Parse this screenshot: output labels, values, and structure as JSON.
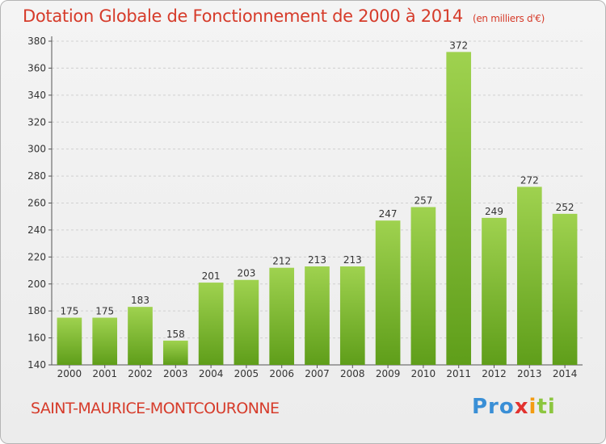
{
  "title": "Dotation Globale de Fonctionnement de 2000 à 2014",
  "unit_note": "(en milliers d'€)",
  "commune": "SAINT-MAURICE-MONTCOURONNE",
  "logo": {
    "text": "Proxiti",
    "parts": [
      "Pro",
      "x",
      "i",
      "ti"
    ]
  },
  "colors": {
    "title": "#d63b2a",
    "bar_light": "#9fd24f",
    "bar_dark": "#5f9e1a",
    "grid": "#cfcfcf"
  },
  "chart_data": {
    "type": "bar",
    "title": "Dotation Globale de Fonctionnement de 2000 à 2014",
    "categories": [
      "2000",
      "2001",
      "2002",
      "2003",
      "2004",
      "2005",
      "2006",
      "2007",
      "2008",
      "2009",
      "2010",
      "2011",
      "2012",
      "2013",
      "2014"
    ],
    "values": [
      175,
      175,
      183,
      158,
      201,
      203,
      212,
      213,
      213,
      247,
      257,
      372,
      249,
      272,
      252
    ],
    "xlabel": "",
    "ylabel": "",
    "ylim": [
      140,
      380
    ],
    "yticks": [
      140,
      160,
      180,
      200,
      220,
      240,
      260,
      280,
      300,
      320,
      340,
      360,
      380
    ],
    "grid": true,
    "data_labels": true
  }
}
